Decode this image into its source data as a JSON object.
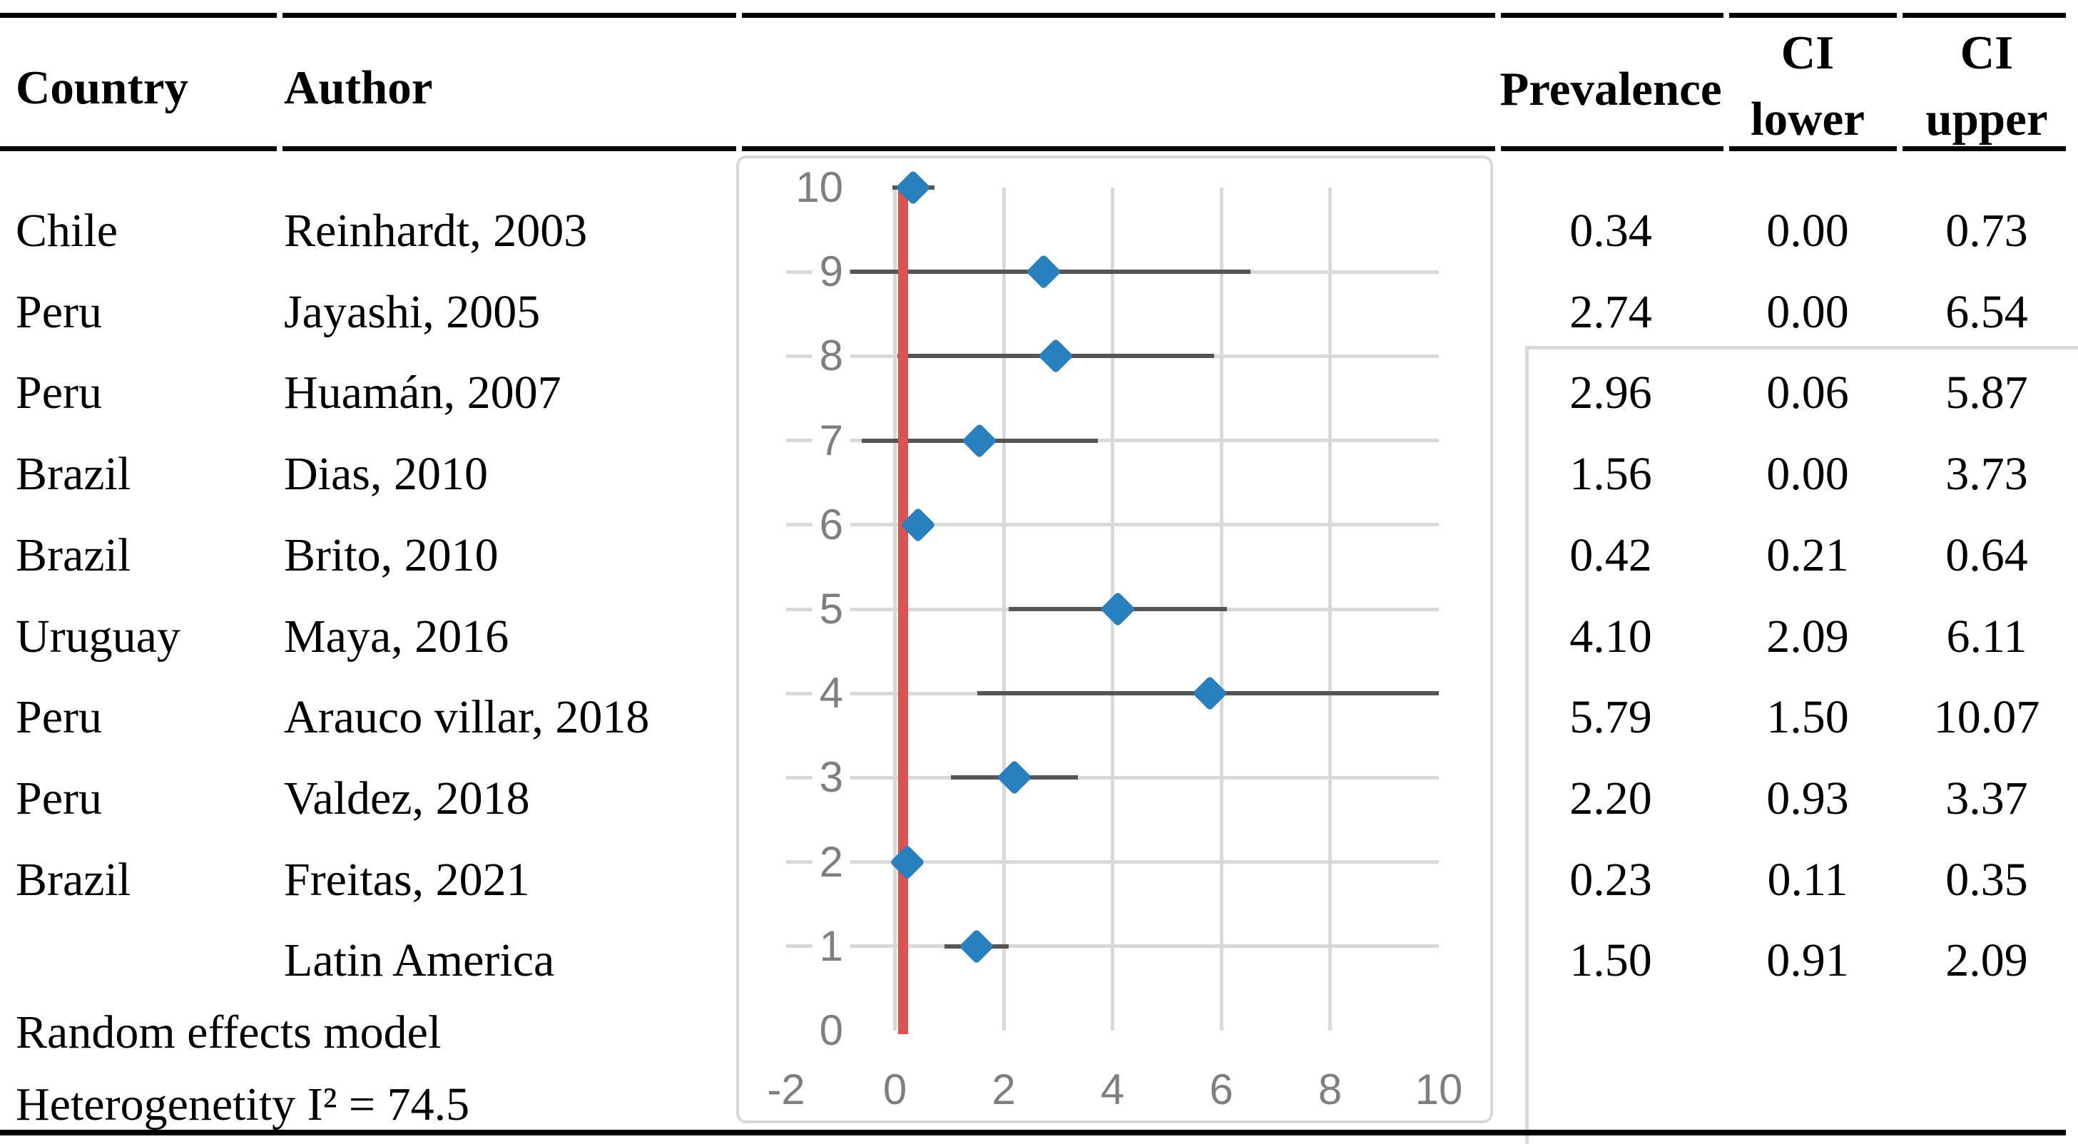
{
  "table": {
    "headers": {
      "country": "Country",
      "author": "Author",
      "prevalence": "Prevalence",
      "ci_lower": [
        "CI",
        "lower"
      ],
      "ci_upper": [
        "CI",
        "upper"
      ]
    },
    "footer_line1": "Random effects model",
    "footer_line2": "Heterogenetity I² = 74.5"
  },
  "chart_data": {
    "type": "scatter",
    "description": "Forest plot of prevalence estimates with confidence intervals; blue diamond markers with dark horizontal error bars and a red vertical reference line",
    "x_axis": {
      "min": -2,
      "max": 10,
      "tick_step": 2,
      "ticks": [
        -2,
        0,
        2,
        4,
        6,
        8,
        10
      ]
    },
    "y_axis": {
      "min": 0,
      "max": 10,
      "tick_step": 1,
      "ticks": [
        0,
        1,
        2,
        3,
        4,
        5,
        6,
        7,
        8,
        9,
        10
      ]
    },
    "grid": true,
    "legend": false,
    "reference_line_x": 0.15,
    "error_bar_rule": "drawn symmetric: prevalence ± (ci_upper − prevalence), clipped to axis range",
    "points": [
      {
        "y": 10,
        "country": "Chile",
        "author": "Reinhardt, 2003",
        "prevalence": 0.34,
        "ci_lower": 0.0,
        "ci_upper": 0.73
      },
      {
        "y": 9,
        "country": "Peru",
        "author": "Jayashi, 2005",
        "prevalence": 2.74,
        "ci_lower": 0.0,
        "ci_upper": 6.54
      },
      {
        "y": 8,
        "country": "Peru",
        "author": "Huamán, 2007",
        "prevalence": 2.96,
        "ci_lower": 0.06,
        "ci_upper": 5.87
      },
      {
        "y": 7,
        "country": "Brazil",
        "author": "Dias, 2010",
        "prevalence": 1.56,
        "ci_lower": 0.0,
        "ci_upper": 3.73
      },
      {
        "y": 6,
        "country": "Brazil",
        "author": "Brito, 2010",
        "prevalence": 0.42,
        "ci_lower": 0.21,
        "ci_upper": 0.64
      },
      {
        "y": 5,
        "country": "Uruguay",
        "author": "Maya, 2016",
        "prevalence": 4.1,
        "ci_lower": 2.09,
        "ci_upper": 6.11
      },
      {
        "y": 4,
        "country": "Peru",
        "author": "Arauco villar, 2018",
        "prevalence": 5.79,
        "ci_lower": 1.5,
        "ci_upper": 10.07
      },
      {
        "y": 3,
        "country": "Peru",
        "author": "Valdez, 2018",
        "prevalence": 2.2,
        "ci_lower": 0.93,
        "ci_upper": 3.37
      },
      {
        "y": 2,
        "country": "Brazil",
        "author": "Freitas, 2021",
        "prevalence": 0.23,
        "ci_lower": 0.11,
        "ci_upper": 0.35
      },
      {
        "y": 1,
        "country": "",
        "author": "Latin America",
        "prevalence": 1.5,
        "ci_lower": 0.91,
        "ci_upper": 2.09
      }
    ],
    "colors": {
      "marker": "#2880be",
      "reference_line": "#db5451",
      "error_bar": "#555555",
      "gridline": "#d9d9d9",
      "axis_label": "#7f7f7f",
      "text": "#000000"
    }
  }
}
